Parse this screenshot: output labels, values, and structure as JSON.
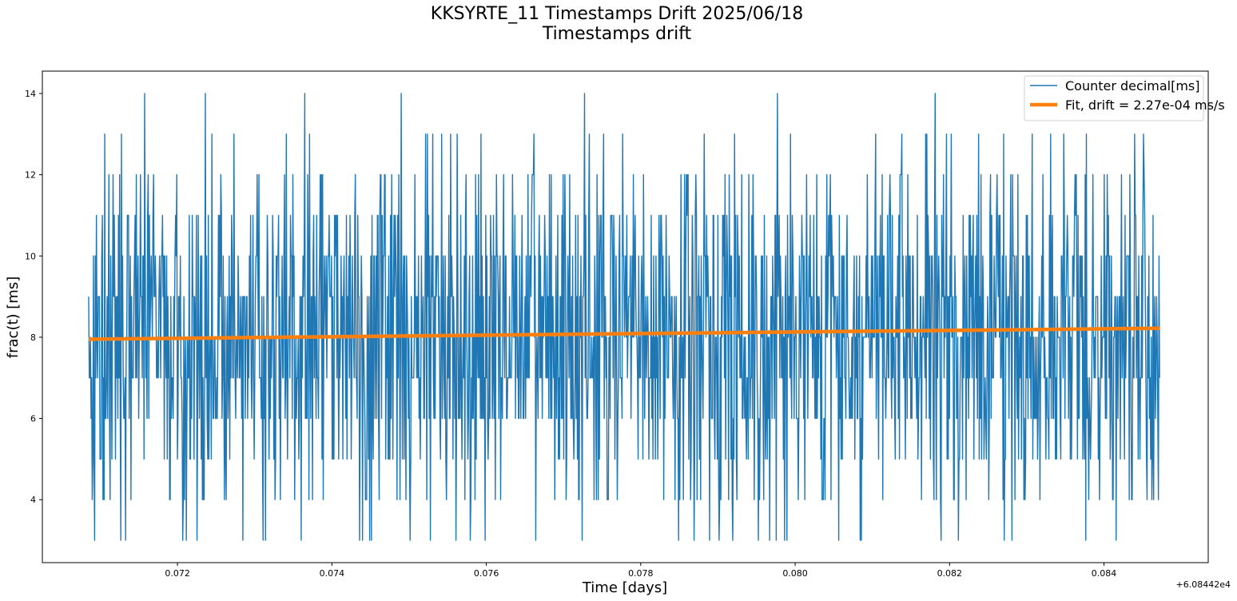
{
  "chart_data": {
    "type": "line",
    "title": "KKSYRTE_11 Timestamps Drift 2025/06/18",
    "subtitle": "Timestamps drift",
    "xlabel": "Time [days]",
    "ylabel": "frac(t) [ms]",
    "x_offset_label": "+6.08442e4",
    "xlim": [
      0.07025,
      0.08535
    ],
    "ylim": [
      2.45,
      14.55
    ],
    "x_ticks": [
      0.072,
      0.074,
      0.076,
      0.078,
      0.08,
      0.082,
      0.084
    ],
    "x_tick_labels": [
      "0.072",
      "0.074",
      "0.076",
      "0.078",
      "0.080",
      "0.082",
      "0.084"
    ],
    "y_ticks": [
      4,
      6,
      8,
      10,
      12,
      14
    ],
    "y_tick_labels": [
      "4",
      "6",
      "8",
      "10",
      "12",
      "14"
    ],
    "grid": false,
    "legend_position": "top-right",
    "series": [
      {
        "name": "Counter decimal[ms]",
        "color": "#1f77b4",
        "sample_count": 1800,
        "x_start": 0.07085,
        "x_end": 0.08472,
        "value_range": [
          3,
          14
        ],
        "mean": 8.05,
        "note": "integer-valued noisy samples, densely sampled"
      },
      {
        "name": "Fit, drift = 2.27e-04 ms/s",
        "color": "#ff7f0e",
        "x": [
          0.07085,
          0.08472
        ],
        "y": [
          7.95,
          8.22
        ]
      }
    ]
  }
}
